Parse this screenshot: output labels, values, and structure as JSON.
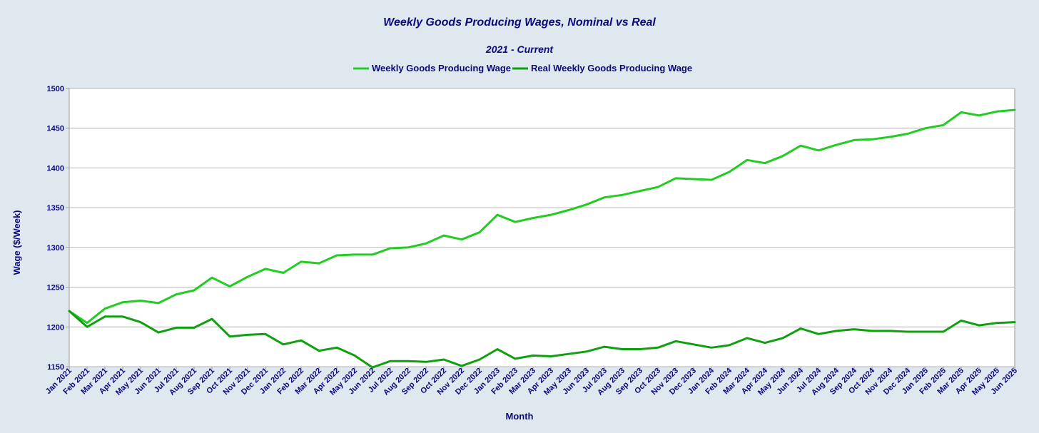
{
  "chart_data": {
    "type": "line",
    "title": "Weekly Goods Producing Wages, Nominal vs Real",
    "subtitle": "2021 - Current",
    "xlabel": "Month",
    "ylabel": "Wage ($/Week)",
    "ylim": [
      1150,
      1500
    ],
    "yticks": [
      1150,
      1200,
      1250,
      1300,
      1350,
      1400,
      1450,
      1500
    ],
    "grid": "horizontal",
    "legend_position": "top-center",
    "categories": [
      "Jan 2021",
      "Feb 2021",
      "Mar 2021",
      "Apr 2021",
      "May 2021",
      "Jun 2021",
      "Jul 2021",
      "Aug 2021",
      "Sep 2021",
      "Oct 2021",
      "Nov 2021",
      "Dec 2021",
      "Jan 2022",
      "Feb 2022",
      "Mar 2022",
      "Apr 2022",
      "May 2022",
      "Jun 2022",
      "Jul 2022",
      "Aug 2022",
      "Sep 2022",
      "Oct 2022",
      "Nov 2022",
      "Dec 2022",
      "Jan 2023",
      "Feb 2023",
      "Mar 2023",
      "Apr 2023",
      "May 2023",
      "Jun 2023",
      "Jul 2023",
      "Aug 2023",
      "Sep 2023",
      "Oct 2023",
      "Nov 2023",
      "Dec 2023",
      "Jan 2024",
      "Feb 2024",
      "Mar 2024",
      "Apr 2024",
      "May 2024",
      "Jun 2024",
      "Jul 2024",
      "Aug 2024",
      "Sep 2024",
      "Oct 2024",
      "Nov 2024",
      "Dec 2024",
      "Jan 2025",
      "Feb 2025",
      "Mar 2025",
      "Apr 2025",
      "May 2025",
      "Jun 2025"
    ],
    "series": [
      {
        "name": "Weekly Goods Producing Wage",
        "color": "#22cc22",
        "values": [
          1220,
          1205,
          1223,
          1231,
          1233,
          1230,
          1241,
          1246,
          1262,
          1251,
          1263,
          1273,
          1268,
          1282,
          1280,
          1290,
          1291,
          1291,
          1299,
          1300,
          1305,
          1315,
          1310,
          1319,
          1341,
          1332,
          1337,
          1341,
          1347,
          1354,
          1363,
          1366,
          1371,
          1376,
          1387,
          1386,
          1385,
          1395,
          1410,
          1406,
          1415,
          1428,
          1422,
          1429,
          1435,
          1436,
          1439,
          1443,
          1450,
          1454,
          1470,
          1466,
          1471,
          1473
        ]
      },
      {
        "name": "Real Weekly Goods Producing Wage",
        "color": "#0ea00e",
        "values": [
          1220,
          1200,
          1213,
          1213,
          1206,
          1193,
          1199,
          1199,
          1210,
          1188,
          1190,
          1191,
          1178,
          1183,
          1170,
          1174,
          1164,
          1149,
          1157,
          1157,
          1156,
          1159,
          1151,
          1159,
          1172,
          1160,
          1164,
          1163,
          1166,
          1169,
          1175,
          1172,
          1172,
          1174,
          1182,
          1178,
          1174,
          1177,
          1186,
          1180,
          1186,
          1198,
          1191,
          1195,
          1197,
          1195,
          1195,
          1194,
          1194,
          1194,
          1208,
          1202,
          1205,
          1206
        ]
      }
    ]
  },
  "colors": {
    "background": "#dfe7ef",
    "plot_background": "#ffffff",
    "text": "#0a0a80",
    "grid": "#b4b4b4"
  }
}
